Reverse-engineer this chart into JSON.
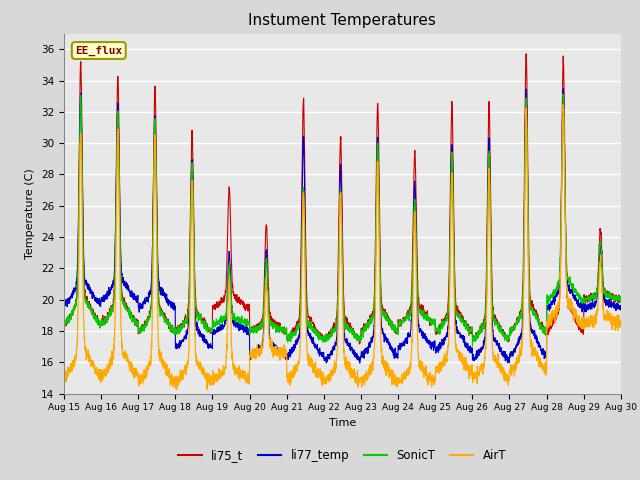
{
  "title": "Instument Temperatures",
  "xlabel": "Time",
  "ylabel": "Temperature (C)",
  "ylim": [
    14,
    37
  ],
  "yticks": [
    14,
    16,
    18,
    20,
    22,
    24,
    26,
    28,
    30,
    32,
    34,
    36
  ],
  "x_end": 15,
  "num_points": 3000,
  "colors": {
    "li75_t": "#cc0000",
    "li77_temp": "#0000cc",
    "SonicT": "#00cc00",
    "AirT": "#ffaa00"
  },
  "legend_labels": [
    "li75_t",
    "li77_temp",
    "SonicT",
    "AirT"
  ],
  "annotation_text": "EE_flux",
  "bg_color": "#d8d8d8",
  "plot_bg_color": "#e8e8e8",
  "xtick_labels": [
    "Aug 15",
    "Aug 16",
    "Aug 17",
    "Aug 18",
    "Aug 19",
    "Aug 20",
    "Aug 21",
    "Aug 22",
    "Aug 23",
    "Aug 24",
    "Aug 25",
    "Aug 26",
    "Aug 27",
    "Aug 28",
    "Aug 29",
    "Aug 30"
  ],
  "xtick_positions": [
    0,
    1,
    2,
    3,
    4,
    5,
    6,
    7,
    8,
    9,
    10,
    11,
    12,
    13,
    14,
    15
  ],
  "day_peaks_li75": [
    35.2,
    34.3,
    33.6,
    30.8,
    27.1,
    24.8,
    32.8,
    30.3,
    32.5,
    29.5,
    32.5,
    32.5,
    35.8,
    35.5,
    24.5
  ],
  "day_peaks_li77": [
    33.2,
    32.4,
    31.8,
    28.9,
    23.0,
    23.1,
    30.4,
    28.6,
    30.4,
    27.5,
    30.0,
    30.2,
    33.5,
    33.5,
    23.5
  ],
  "day_peaks_sonic": [
    33.0,
    32.0,
    31.5,
    28.7,
    22.0,
    22.5,
    27.2,
    27.0,
    30.0,
    26.4,
    29.5,
    29.5,
    32.8,
    33.0,
    23.8
  ],
  "day_peaks_air": [
    30.5,
    30.8,
    30.5,
    27.5,
    21.0,
    21.1,
    27.0,
    27.0,
    28.8,
    25.5,
    27.8,
    28.0,
    32.0,
    32.2,
    22.5
  ],
  "day_troughs_li75": [
    18.5,
    18.5,
    18.0,
    18.0,
    19.5,
    18.0,
    17.5,
    17.5,
    18.0,
    18.5,
    18.0,
    17.5,
    18.0,
    18.0,
    20.0
  ],
  "day_troughs_li77": [
    19.8,
    20.0,
    19.5,
    17.0,
    18.0,
    16.5,
    16.5,
    16.2,
    16.5,
    17.0,
    16.8,
    16.2,
    16.5,
    19.5,
    19.5
  ],
  "day_troughs_sonic": [
    18.5,
    18.5,
    18.0,
    18.0,
    18.5,
    18.0,
    17.5,
    17.5,
    18.0,
    18.5,
    18.0,
    17.5,
    18.0,
    20.0,
    20.0
  ],
  "day_troughs_air": [
    15.2,
    15.2,
    14.8,
    14.8,
    15.0,
    16.5,
    15.0,
    14.8,
    14.8,
    14.8,
    15.5,
    15.0,
    15.5,
    18.5,
    18.5
  ]
}
